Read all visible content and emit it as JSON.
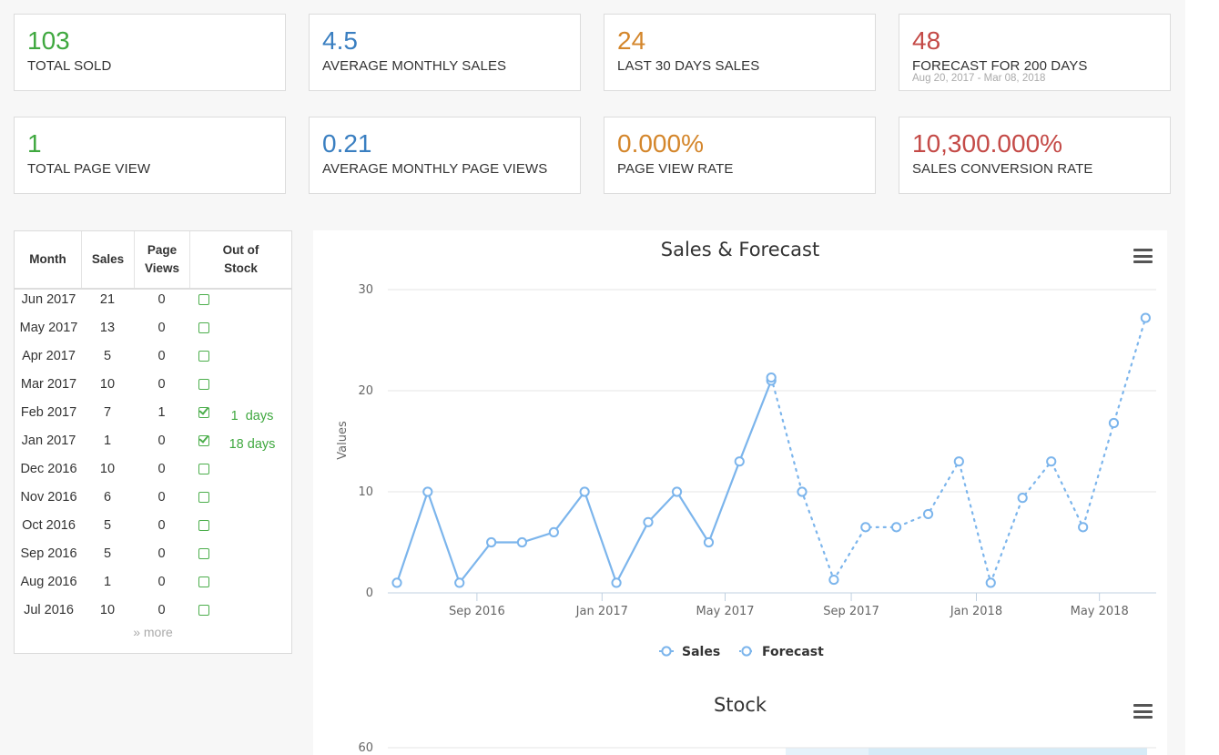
{
  "stats": [
    {
      "value": "103",
      "label": "TOTAL SOLD",
      "color": "#3fa83f"
    },
    {
      "value": "4.5",
      "label": "AVERAGE MONTHLY SALES",
      "color": "#3a7fc1"
    },
    {
      "value": "24",
      "label": "LAST 30 DAYS SALES",
      "color": "#d4862b"
    },
    {
      "value": "48",
      "label": "FORECAST FOR 200 DAYS",
      "sub": "Aug 20, 2017 - Mar 08, 2018",
      "color": "#c44a47"
    },
    {
      "value": "1",
      "label": "TOTAL PAGE VIEW",
      "color": "#3fa83f"
    },
    {
      "value": "0.21",
      "label": "AVERAGE MONTHLY PAGE VIEWS",
      "color": "#3a7fc1"
    },
    {
      "value": "0.000%",
      "label": "PAGE VIEW RATE",
      "color": "#d4862b"
    },
    {
      "value": "10,300.000%",
      "label": "SALES CONVERSION RATE",
      "color": "#c44a47"
    }
  ],
  "table": {
    "headers": {
      "month": "Month",
      "sales": "Sales",
      "views_1": "Page",
      "views_2": "Views",
      "stock_1": "Out of",
      "stock_2": "Stock"
    },
    "rows": [
      {
        "month": "Jun 2017",
        "sales": "21",
        "views": "0",
        "out_of_stock": false,
        "days": ""
      },
      {
        "month": "May 2017",
        "sales": "13",
        "views": "0",
        "out_of_stock": false,
        "days": ""
      },
      {
        "month": "Apr 2017",
        "sales": "5",
        "views": "0",
        "out_of_stock": false,
        "days": ""
      },
      {
        "month": "Mar 2017",
        "sales": "10",
        "views": "0",
        "out_of_stock": false,
        "days": ""
      },
      {
        "month": "Feb 2017",
        "sales": "7",
        "views": "1",
        "out_of_stock": true,
        "days": "1  days"
      },
      {
        "month": "Jan 2017",
        "sales": "1",
        "views": "0",
        "out_of_stock": true,
        "days": "18 days"
      },
      {
        "month": "Dec 2016",
        "sales": "10",
        "views": "0",
        "out_of_stock": false,
        "days": ""
      },
      {
        "month": "Nov 2016",
        "sales": "6",
        "views": "0",
        "out_of_stock": false,
        "days": ""
      },
      {
        "month": "Oct 2016",
        "sales": "5",
        "views": "0",
        "out_of_stock": false,
        "days": ""
      },
      {
        "month": "Sep 2016",
        "sales": "5",
        "views": "0",
        "out_of_stock": false,
        "days": ""
      },
      {
        "month": "Aug 2016",
        "sales": "1",
        "views": "0",
        "out_of_stock": false,
        "days": ""
      },
      {
        "month": "Jul 2016",
        "sales": "10",
        "views": "0",
        "out_of_stock": false,
        "days": ""
      }
    ],
    "more_label": "more",
    "more_icon": "double-chevron-down-icon"
  },
  "chart_data": [
    {
      "type": "line",
      "title": "Sales & Forecast",
      "ylabel": "Values",
      "xlabel": "",
      "ylim": [
        0,
        30
      ],
      "yticks": [
        "0",
        "10",
        "20",
        "30"
      ],
      "xticks": [
        {
          "label": "Sep 2016",
          "month": "2016-09"
        },
        {
          "label": "Jan 2017",
          "month": "2017-01"
        },
        {
          "label": "May 2017",
          "month": "2017-05"
        },
        {
          "label": "Sep 2017",
          "month": "2017-09"
        },
        {
          "label": "Jan 2018",
          "month": "2018-01"
        },
        {
          "label": "May 2018",
          "month": "2018-05"
        }
      ],
      "xlim": [
        "2016-06-15",
        "2018-06-20"
      ],
      "grid": true,
      "legend": "bottom-center",
      "series": [
        {
          "name": "Sales",
          "style": "solid",
          "color": "#7cb5ec",
          "x": [
            "2016-06-15",
            "2016-07-15",
            "2016-08-15",
            "2016-09-15",
            "2016-10-15",
            "2016-11-15",
            "2016-12-15",
            "2017-01-15",
            "2017-02-15",
            "2017-03-15",
            "2017-04-15",
            "2017-05-15",
            "2017-06-15"
          ],
          "values": [
            1,
            10,
            1,
            5,
            5,
            6,
            10,
            1,
            7,
            10,
            5,
            13,
            21
          ]
        },
        {
          "name": "Forecast",
          "style": "dotted",
          "color": "#7cb5ec",
          "x": [
            "2017-06-15",
            "2017-07-15",
            "2017-08-15",
            "2017-09-15",
            "2017-10-15",
            "2017-11-15",
            "2017-12-15",
            "2018-01-15",
            "2018-02-15",
            "2018-03-15",
            "2018-04-15",
            "2018-05-15",
            "2018-06-15"
          ],
          "values": [
            21.3,
            10,
            1.3,
            6.5,
            6.5,
            7.8,
            13,
            1,
            9.4,
            13,
            6.5,
            16.8,
            27.2
          ]
        }
      ]
    },
    {
      "type": "line",
      "title": "Stock",
      "ylim": [
        0,
        60
      ],
      "yticks": [
        "60"
      ]
    }
  ],
  "chart_menu_icon": "hamburger-menu-icon",
  "colors": {
    "accent": "#7cb5ec",
    "check": "#4cae4c"
  }
}
